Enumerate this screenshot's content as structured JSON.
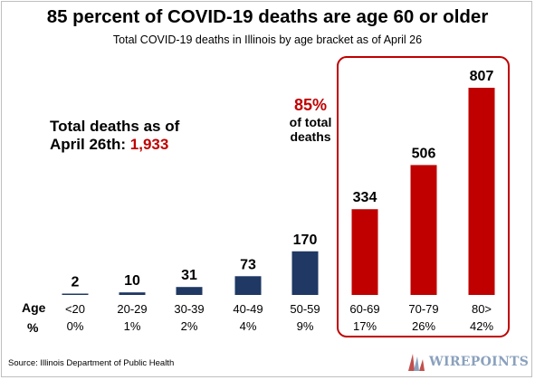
{
  "title": "85 percent of COVID-19 deaths are age 60 or older",
  "subtitle": "Total COVID-19 deaths in Illinois by age bracket as of April 26",
  "total": {
    "prefix": "Total deaths as of",
    "line2": "April 26th:",
    "value": "1,933"
  },
  "annotation": {
    "value": "85%",
    "line1": "of total",
    "line2": "deaths"
  },
  "source": "Source: Illinois Department of Public Health",
  "logo_text": "WIREPOINTS",
  "colors": {
    "navy": "#1f3864",
    "red": "#c00000",
    "highlight_border": "#c00000"
  },
  "chart_data": {
    "type": "bar",
    "title": "85 percent of COVID-19 deaths are age 60 or older",
    "subtitle": "Total COVID-19 deaths in Illinois by age bracket as of April 26",
    "row_labels": [
      "Age",
      "%"
    ],
    "categories": [
      "<20",
      "20-29",
      "30-39",
      "40-49",
      "50-59",
      "60-69",
      "70-79",
      "80>"
    ],
    "values": [
      2,
      10,
      31,
      73,
      170,
      334,
      506,
      807
    ],
    "percents": [
      "0%",
      "1%",
      "2%",
      "4%",
      "9%",
      "17%",
      "26%",
      "42%"
    ],
    "highlighted": [
      false,
      false,
      false,
      false,
      false,
      true,
      true,
      true
    ],
    "ylim": [
      0,
      807
    ],
    "grid": false,
    "legend": "none"
  }
}
